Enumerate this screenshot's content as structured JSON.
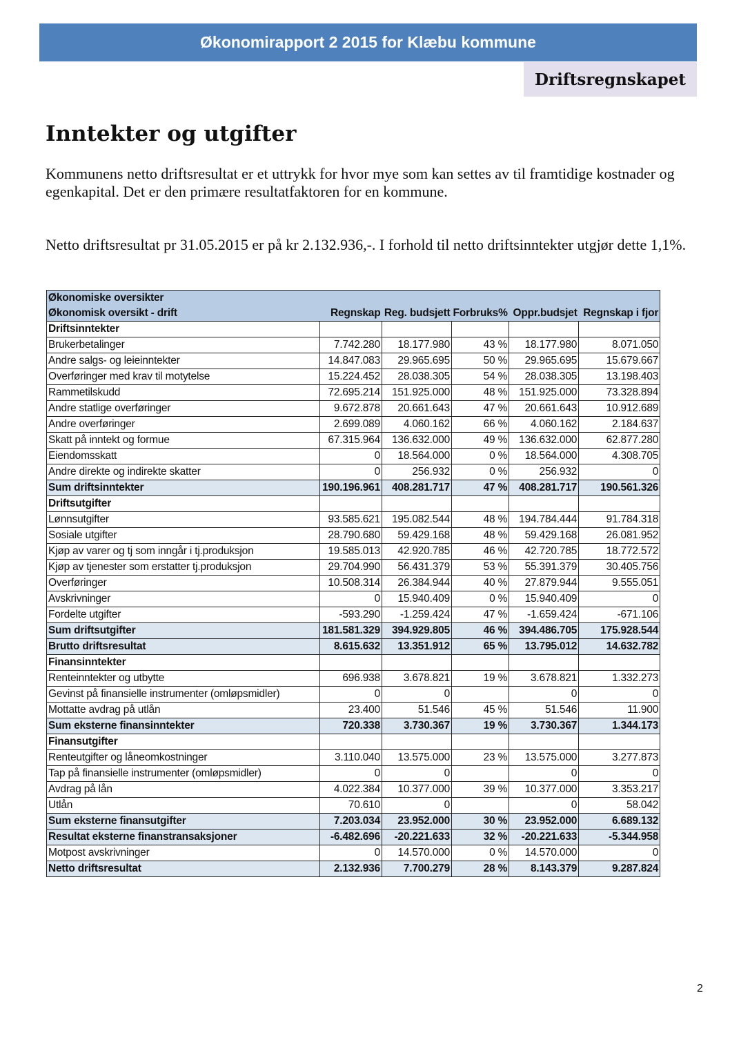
{
  "header": {
    "title": "Økonomirapport 2 2015 for Klæbu kommune",
    "section": "Driftsregnskapet"
  },
  "heading": "Inntekter og utgifter",
  "paragraphs": [
    "Kommunens netto driftsresultat er et uttrykk for hvor mye som kan settes av til framtidige kostnader og egenkapital. Det er den primære resultatfaktoren for en kommune.",
    "Netto driftsresultat pr 31.05.2015 er på kr 2.132.936,-. I forhold til netto driftsinntekter utgjør dette 1,1%."
  ],
  "table": {
    "title": "Økonomiske oversikter",
    "columns": [
      "Økonomisk oversikt - drift",
      "Regnskap",
      "Reg. budsjett",
      "Forbruks%",
      "Oppr.budsjet",
      "Regnskap i fjor"
    ],
    "rows": [
      {
        "type": "section",
        "cells": [
          "Driftsinntekter",
          "",
          "",
          "",
          "",
          ""
        ]
      },
      {
        "type": "normal",
        "cells": [
          "Brukerbetalinger",
          "7.742.280",
          "18.177.980",
          "43 %",
          "18.177.980",
          "8.071.050"
        ]
      },
      {
        "type": "normal",
        "cells": [
          "Andre salgs- og leieinntekter",
          "14.847.083",
          "29.965.695",
          "50 %",
          "29.965.695",
          "15.679.667"
        ]
      },
      {
        "type": "normal",
        "cells": [
          "Overføringer med krav til motytelse",
          "15.224.452",
          "28.038.305",
          "54 %",
          "28.038.305",
          "13.198.403"
        ]
      },
      {
        "type": "normal",
        "cells": [
          "Rammetilskudd",
          "72.695.214",
          "151.925.000",
          "48 %",
          "151.925.000",
          "73.328.894"
        ]
      },
      {
        "type": "normal",
        "cells": [
          "Andre statlige overføringer",
          "9.672.878",
          "20.661.643",
          "47 %",
          "20.661.643",
          "10.912.689"
        ]
      },
      {
        "type": "normal",
        "cells": [
          "Andre overføringer",
          "2.699.089",
          "4.060.162",
          "66 %",
          "4.060.162",
          "2.184.637"
        ]
      },
      {
        "type": "normal",
        "cells": [
          "Skatt på inntekt og formue",
          "67.315.964",
          "136.632.000",
          "49 %",
          "136.632.000",
          "62.877.280"
        ]
      },
      {
        "type": "normal",
        "cells": [
          "Eiendomsskatt",
          "0",
          "18.564.000",
          "0 %",
          "18.564.000",
          "4.308.705"
        ]
      },
      {
        "type": "normal",
        "cells": [
          "Andre direkte og indirekte skatter",
          "0",
          "256.932",
          "0 %",
          "256.932",
          "0"
        ]
      },
      {
        "type": "sum",
        "cells": [
          "Sum driftsinntekter",
          "190.196.961",
          "408.281.717",
          "47 %",
          "408.281.717",
          "190.561.326"
        ]
      },
      {
        "type": "section",
        "cells": [
          "Driftsutgifter",
          "",
          "",
          "",
          "",
          ""
        ]
      },
      {
        "type": "normal",
        "cells": [
          "Lønnsutgifter",
          "93.585.621",
          "195.082.544",
          "48 %",
          "194.784.444",
          "91.784.318"
        ]
      },
      {
        "type": "normal",
        "cells": [
          "Sosiale utgifter",
          "28.790.680",
          "59.429.168",
          "48 %",
          "59.429.168",
          "26.081.952"
        ]
      },
      {
        "type": "normal",
        "cells": [
          "Kjøp av varer og tj som inngår i tj.produksjon",
          "19.585.013",
          "42.920.785",
          "46 %",
          "42.720.785",
          "18.772.572"
        ]
      },
      {
        "type": "normal",
        "cells": [
          "Kjøp av tjenester som erstatter tj.produksjon",
          "29.704.990",
          "56.431.379",
          "53 %",
          "55.391.379",
          "30.405.756"
        ]
      },
      {
        "type": "normal",
        "cells": [
          "Overføringer",
          "10.508.314",
          "26.384.944",
          "40 %",
          "27.879.944",
          "9.555.051"
        ]
      },
      {
        "type": "normal",
        "cells": [
          "Avskrivninger",
          "0",
          "15.940.409",
          "0 %",
          "15.940.409",
          "0"
        ]
      },
      {
        "type": "normal",
        "cells": [
          "Fordelte utgifter",
          "-593.290",
          "-1.259.424",
          "47 %",
          "-1.659.424",
          "-671.106"
        ]
      },
      {
        "type": "sum",
        "cells": [
          "Sum driftsutgifter",
          "181.581.329",
          "394.929.805",
          "46 %",
          "394.486.705",
          "175.928.544"
        ]
      },
      {
        "type": "sum",
        "cells": [
          "Brutto driftsresultat",
          "8.615.632",
          "13.351.912",
          "65 %",
          "13.795.012",
          "14.632.782"
        ]
      },
      {
        "type": "section",
        "cells": [
          "Finansinntekter",
          "",
          "",
          "",
          "",
          ""
        ]
      },
      {
        "type": "normal",
        "cells": [
          "Renteinntekter og utbytte",
          "696.938",
          "3.678.821",
          "19 %",
          "3.678.821",
          "1.332.273"
        ]
      },
      {
        "type": "normal",
        "cells": [
          "Gevinst på finansielle instrumenter (omløpsmidler)",
          "0",
          "0",
          "",
          "0",
          "0"
        ]
      },
      {
        "type": "normal",
        "cells": [
          "Mottatte avdrag på utlån",
          "23.400",
          "51.546",
          "45 %",
          "51.546",
          "11.900"
        ]
      },
      {
        "type": "sum",
        "cells": [
          "Sum eksterne finansinntekter",
          "720.338",
          "3.730.367",
          "19 %",
          "3.730.367",
          "1.344.173"
        ]
      },
      {
        "type": "section",
        "cells": [
          "Finansutgifter",
          "",
          "",
          "",
          "",
          ""
        ]
      },
      {
        "type": "normal",
        "cells": [
          "Renteutgifter og låneomkostninger",
          "3.110.040",
          "13.575.000",
          "23 %",
          "13.575.000",
          "3.277.873"
        ]
      },
      {
        "type": "normal",
        "cells": [
          "Tap på finansielle instrumenter (omløpsmidler)",
          "0",
          "0",
          "",
          "0",
          "0"
        ]
      },
      {
        "type": "normal",
        "cells": [
          "Avdrag på lån",
          "4.022.384",
          "10.377.000",
          "39 %",
          "10.377.000",
          "3.353.217"
        ]
      },
      {
        "type": "normal",
        "cells": [
          "Utlån",
          "70.610",
          "0",
          "",
          "0",
          "58.042"
        ]
      },
      {
        "type": "sum",
        "cells": [
          "Sum eksterne finansutgifter",
          "7.203.034",
          "23.952.000",
          "30 %",
          "23.952.000",
          "6.689.132"
        ]
      },
      {
        "type": "sum",
        "cells": [
          "Resultat eksterne finanstransaksjoner",
          "-6.482.696",
          "-20.221.633",
          "32 %",
          "-20.221.633",
          "-5.344.958"
        ]
      },
      {
        "type": "normal",
        "cells": [
          "Motpost avskrivninger",
          "0",
          "14.570.000",
          "0 %",
          "14.570.000",
          "0"
        ]
      },
      {
        "type": "sum",
        "cells": [
          "Netto driftsresultat",
          "2.132.936",
          "7.700.279",
          "28 %",
          "8.143.379",
          "9.287.824"
        ]
      }
    ]
  },
  "page_number": "2"
}
